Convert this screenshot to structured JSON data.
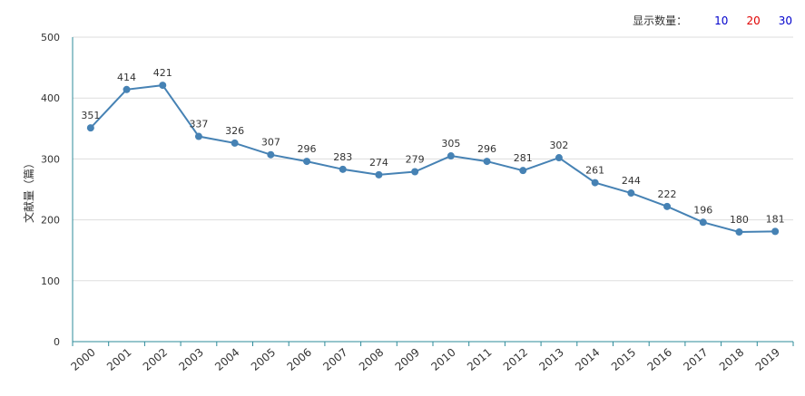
{
  "toolbar": {
    "label": "显示数量：",
    "options": [
      {
        "text": "10",
        "color": "#0000cc"
      },
      {
        "text": "20",
        "color": "#e00000"
      },
      {
        "text": "30",
        "color": "#0000cc"
      }
    ]
  },
  "chart_data": {
    "type": "line",
    "title": "",
    "xlabel": "",
    "ylabel": "文献量（篇）",
    "ylim": [
      0,
      500
    ],
    "yticks": [
      0,
      100,
      200,
      300,
      400,
      500
    ],
    "grid": true,
    "line_color": "#4682b4",
    "axis_color": "#2e8b9a",
    "x": [
      "2000",
      "2001",
      "2002",
      "2003",
      "2004",
      "2005",
      "2006",
      "2007",
      "2008",
      "2009",
      "2010",
      "2011",
      "2012",
      "2013",
      "2014",
      "2015",
      "2016",
      "2017",
      "2018",
      "2019"
    ],
    "series": [
      {
        "values": [
          351,
          414,
          421,
          337,
          326,
          307,
          296,
          283,
          274,
          279,
          305,
          296,
          281,
          302,
          261,
          244,
          222,
          196,
          180,
          181
        ]
      }
    ]
  }
}
